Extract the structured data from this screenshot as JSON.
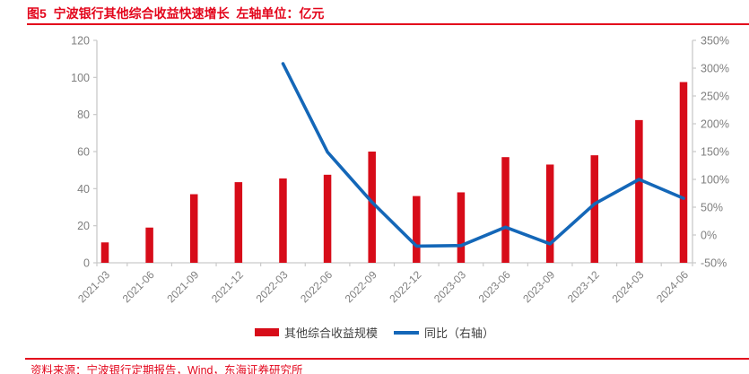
{
  "header": {
    "figure_label_title": "图5  宁波银行其他综合收益快速增长  左轴单位：亿元"
  },
  "chart_data": {
    "type": "bar",
    "title": "宁波银行其他综合收益快速增长",
    "categories": [
      "2021-03",
      "2021-06",
      "2021-09",
      "2021-12",
      "2022-03",
      "2022-06",
      "2022-09",
      "2022-12",
      "2023-03",
      "2023-06",
      "2023-09",
      "2023-12",
      "2024-03",
      "2024-06"
    ],
    "series": [
      {
        "name": "其他综合收益规模",
        "type": "bar",
        "axis": "left",
        "values": [
          11,
          19,
          37,
          43.5,
          45.5,
          47.5,
          60,
          36,
          38,
          57,
          53,
          58,
          77,
          97.5
        ]
      },
      {
        "name": "同比（右轴）",
        "type": "line",
        "axis": "right",
        "values": [
          null,
          null,
          null,
          null,
          308,
          149,
          59,
          -20,
          -19,
          14,
          -16,
          56,
          100,
          66
        ]
      }
    ],
    "left_axis": {
      "unit": "亿元",
      "min": 0,
      "max": 120,
      "step": 20,
      "suffix": ""
    },
    "right_axis": {
      "unit": "%",
      "min": -50,
      "max": 350,
      "step": 50,
      "suffix": "%"
    },
    "legend_position": "bottom",
    "grid": false
  },
  "legend": {
    "items": [
      {
        "label": "其他综合收益规模",
        "marker": "bar"
      },
      {
        "label": "同比（右轴）",
        "marker": "line"
      }
    ]
  },
  "footer": {
    "source": "资料来源：宁波银行定期报告，Wind，东海证券研究所"
  },
  "colors": {
    "brand_red": "#e3051b",
    "bar_red": "#d70c19",
    "line_blue": "#1467b8",
    "axis_gray": "#c9c9c9",
    "tick_text": "#7f7f7f",
    "legend_text": "#404040"
  }
}
